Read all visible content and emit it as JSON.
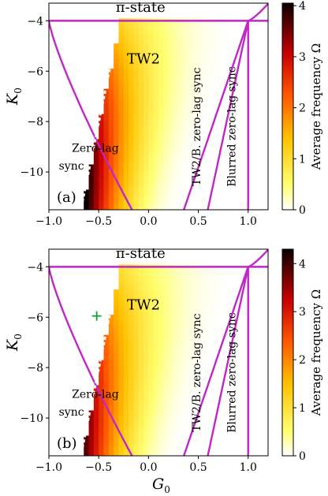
{
  "chart_data": [
    {
      "id": "a",
      "type": "heatmap",
      "panel_label": "(a)",
      "xlabel": "",
      "ylabel": "K",
      "ylabel_sub": "0",
      "xlim": [
        -1.0,
        1.2
      ],
      "ylim": [
        -11.5,
        -3.3
      ],
      "xticks": [
        "−1.0",
        "−0.5",
        "0.0",
        "0.5",
        "1.0"
      ],
      "xtick_values": [
        -1.0,
        -0.5,
        0.0,
        0.5,
        1.0
      ],
      "yticks": [
        "−4",
        "−6",
        "−8",
        "−10"
      ],
      "ytick_values": [
        -4,
        -6,
        -8,
        -10
      ],
      "colorbar": {
        "label": "Average frequency Ω",
        "ticks": [
          "0",
          "1",
          "2",
          "3",
          "4"
        ],
        "tick_values": [
          0,
          1,
          2,
          3,
          4
        ],
        "range": [
          0,
          4.05
        ],
        "colormap": "hot_r"
      },
      "boundaries": {
        "pi_state_level": -4.0,
        "left_parabola": [
          [
            -1.0,
            -4.0
          ],
          [
            -0.8,
            -5.7
          ],
          [
            -0.6,
            -7.9
          ],
          [
            -0.45,
            -9.7
          ],
          [
            -0.35,
            -11.5
          ]
        ],
        "zero_lag_border": [
          [
            -0.33,
            -11.5
          ],
          [
            -0.38,
            -10.0
          ],
          [
            -0.45,
            -8.6
          ],
          [
            -0.55,
            -7.0
          ],
          [
            -0.65,
            -5.8
          ]
        ],
        "tw2_right": [
          [
            0.35,
            -11.5
          ],
          [
            0.5,
            -9.0
          ],
          [
            0.7,
            -6.5
          ],
          [
            1.0,
            -4.0
          ]
        ],
        "blurred_right": [
          [
            0.6,
            -11.5
          ],
          [
            0.72,
            -9.0
          ],
          [
            0.85,
            -6.6
          ],
          [
            1.0,
            -4.0
          ]
        ],
        "vertical": 1.0,
        "right_arc": [
          [
            1.0,
            -4.0
          ],
          [
            1.1,
            -3.7
          ],
          [
            1.2,
            -3.3
          ]
        ]
      },
      "annotations": [
        {
          "text": "π-state",
          "x": -0.08,
          "y": -3.65
        },
        {
          "text": "TW2",
          "x": -0.05,
          "y": -5.7
        },
        {
          "text": "Zero-lag",
          "x": -0.77,
          "y": -9.2
        },
        {
          "text": "sync",
          "x": -0.9,
          "y": -9.9
        },
        {
          "text": "TW2/B. zero-lag sync",
          "x": 0.52,
          "y": -8.2,
          "rotate": -90
        },
        {
          "text": "Blurred zero-lag sync",
          "x": 0.87,
          "y": -8.2,
          "rotate": -90
        }
      ]
    },
    {
      "id": "b",
      "type": "heatmap",
      "panel_label": "(b)",
      "xlabel": "G",
      "xlabel_sub": "0",
      "ylabel": "K",
      "ylabel_sub": "0",
      "xlim": [
        -1.0,
        1.2
      ],
      "ylim": [
        -11.5,
        -3.3
      ],
      "xticks": [
        "−1.0",
        "−0.5",
        "0.0",
        "0.5",
        "1.0"
      ],
      "xtick_values": [
        -1.0,
        -0.5,
        0.0,
        0.5,
        1.0
      ],
      "yticks": [
        "−4",
        "−6",
        "−8",
        "−10"
      ],
      "ytick_values": [
        -4,
        -6,
        -8,
        -10
      ],
      "colorbar": {
        "label": "Average frequency Ω",
        "ticks": [
          "0",
          "1",
          "2",
          "3",
          "4"
        ],
        "tick_values": [
          0,
          1,
          2,
          3,
          4
        ],
        "range": [
          0,
          4.3
        ],
        "colormap": "hot_r"
      },
      "marker": {
        "symbol": "+",
        "x": -0.52,
        "y": -5.95,
        "color": "#1a9e3a"
      },
      "annotations": [
        {
          "text": "π-state",
          "x": -0.08,
          "y": -3.65
        },
        {
          "text": "TW2",
          "x": -0.05,
          "y": -5.7
        },
        {
          "text": "Zero-lag",
          "x": -0.77,
          "y": -9.2
        },
        {
          "text": "sync",
          "x": -0.9,
          "y": -9.9
        },
        {
          "text": "TW2/B. zero-lag sync",
          "x": 0.52,
          "y": -8.2,
          "rotate": -90
        },
        {
          "text": "Blurred zero-lag sync",
          "x": 0.87,
          "y": -8.2,
          "rotate": -90
        }
      ]
    }
  ],
  "style": {
    "boundary_color": "#c026c8",
    "edge_color": "#ffffff"
  }
}
